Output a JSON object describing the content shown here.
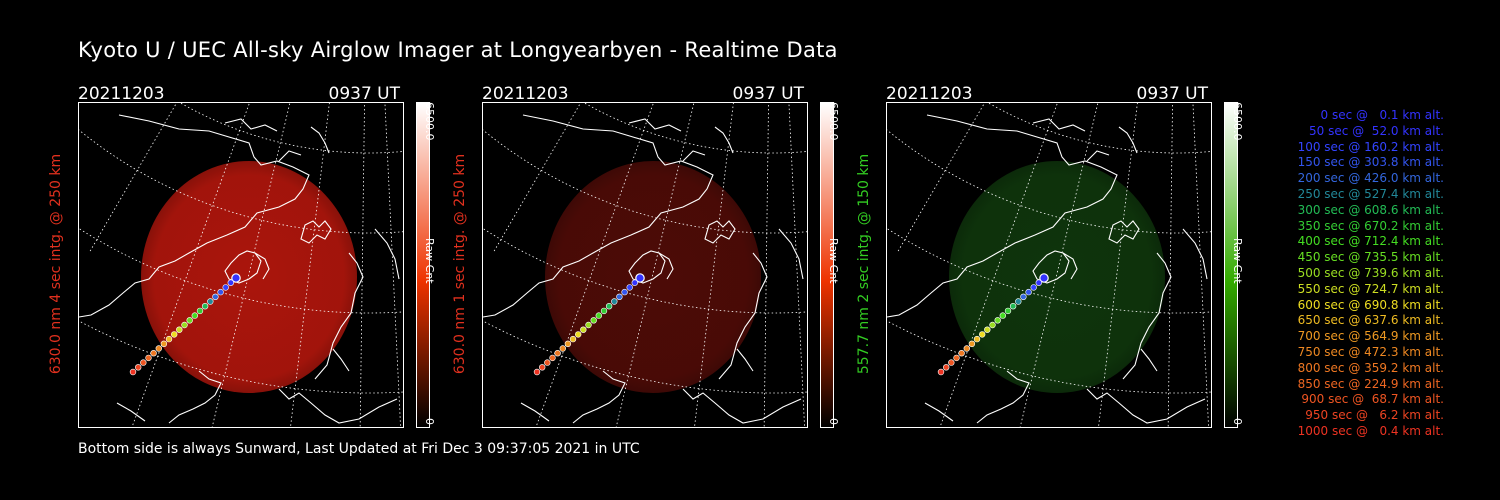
{
  "title": "Kyoto U / UEC All-sky Airglow Imager at Longyearbyen - Realtime Data",
  "footer": "Bottom side is always Sunward, Last Updated at Fri Dec  3 09:37:05 2021 in UTC",
  "panels": [
    {
      "date": "20211203",
      "time": "0937 UT",
      "ylabel": "630.0 nm 4 sec intg. @ 250 km",
      "label_color": "#e0301e",
      "glow_color": "#c8190e",
      "glow_opacity": 0.85,
      "colorbar": {
        "max": "6500.0",
        "label": "Raw Cnt",
        "min": "0",
        "end_color": "#ee3300"
      }
    },
    {
      "date": "20211203",
      "time": "0937 UT",
      "ylabel": "630.0 nm 1 sec intg. @ 250 km",
      "label_color": "#e0301e",
      "glow_color": "#5a0d08",
      "glow_opacity": 0.85,
      "colorbar": {
        "max": "6500.0",
        "label": "Raw Cnt",
        "min": "0",
        "end_color": "#ee3300"
      }
    },
    {
      "date": "20211203",
      "time": "0937 UT",
      "ylabel": "557.7 nm 2 sec intg. @ 150 km",
      "label_color": "#33cc22",
      "glow_color": "#103a0d",
      "glow_opacity": 0.9,
      "colorbar": {
        "max": "6500.0",
        "label": "Raw Cnt",
        "min": "0",
        "end_color": "#33aa00"
      }
    }
  ],
  "legend": [
    {
      "text": "0 sec @   0.1 km alt.",
      "color": "#3333ff"
    },
    {
      "text": "50 sec @  52.0 km alt.",
      "color": "#3333ff"
    },
    {
      "text": "100 sec @ 160.2 km alt.",
      "color": "#3344ff"
    },
    {
      "text": "150 sec @ 303.8 km alt.",
      "color": "#3355ee"
    },
    {
      "text": "200 sec @ 426.0 km alt.",
      "color": "#3366dd"
    },
    {
      "text": "250 sec @ 527.4 km alt.",
      "color": "#228899"
    },
    {
      "text": "300 sec @ 608.6 km alt.",
      "color": "#22bb55"
    },
    {
      "text": "350 sec @ 670.2 km alt.",
      "color": "#33cc33"
    },
    {
      "text": "400 sec @ 712.4 km alt.",
      "color": "#44dd22"
    },
    {
      "text": "450 sec @ 735.5 km alt.",
      "color": "#66dd22"
    },
    {
      "text": "500 sec @ 739.6 km alt.",
      "color": "#99dd22"
    },
    {
      "text": "550 sec @ 724.7 km alt.",
      "color": "#ccdd22"
    },
    {
      "text": "600 sec @ 690.8 km alt.",
      "color": "#eedd22"
    },
    {
      "text": "650 sec @ 637.6 km alt.",
      "color": "#eebb22"
    },
    {
      "text": "700 sec @ 564.9 km alt.",
      "color": "#ee9922"
    },
    {
      "text": "750 sec @ 472.3 km alt.",
      "color": "#ee8822"
    },
    {
      "text": "800 sec @ 359.2 km alt.",
      "color": "#ee7722"
    },
    {
      "text": "850 sec @ 224.9 km alt.",
      "color": "#ee6622"
    },
    {
      "text": "900 sec @  68.7 km alt.",
      "color": "#ee5522"
    },
    {
      "text": "950 sec @   6.2 km alt.",
      "color": "#ee4422"
    },
    {
      "text": "1000 sec @   0.4 km alt.",
      "color": "#ee3322"
    }
  ]
}
